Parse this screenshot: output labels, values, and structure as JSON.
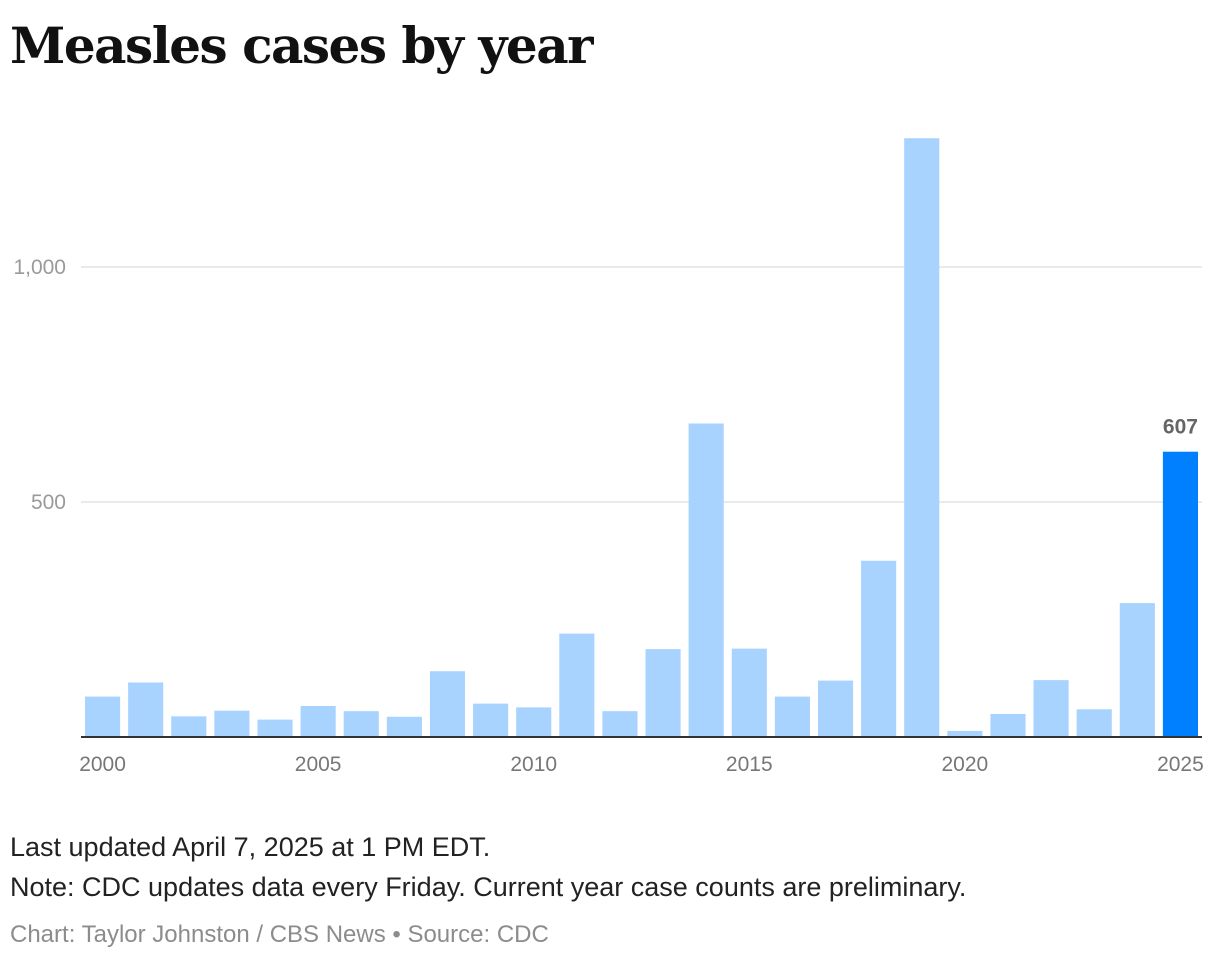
{
  "chart_data": {
    "type": "bar",
    "title": "Measles cases by year",
    "xlabel": "",
    "ylabel": "",
    "categories": [
      "2000",
      "2001",
      "2002",
      "2003",
      "2004",
      "2005",
      "2006",
      "2007",
      "2008",
      "2009",
      "2010",
      "2011",
      "2012",
      "2013",
      "2014",
      "2015",
      "2016",
      "2017",
      "2018",
      "2019",
      "2020",
      "2021",
      "2022",
      "2023",
      "2024",
      "2025"
    ],
    "values": [
      86,
      116,
      44,
      56,
      37,
      66,
      55,
      43,
      140,
      71,
      63,
      220,
      55,
      187,
      667,
      188,
      86,
      120,
      375,
      1274,
      13,
      49,
      121,
      59,
      285,
      607
    ],
    "x_tick_labels": [
      "2000",
      "2005",
      "2010",
      "2015",
      "2020",
      "2025"
    ],
    "y_tick_labels": [
      "500",
      "1,000"
    ],
    "y_ticks": [
      500,
      1000
    ],
    "ylim": [
      0,
      1300
    ],
    "grid": true,
    "highlight_index": 25,
    "highlight_label": "607",
    "colors": {
      "bar": "#a8d3ff",
      "highlight": "#0080ff",
      "grid": "#e3e3e3",
      "axis": "#333333"
    }
  },
  "notes": {
    "updated": "Last updated April 7, 2025 at 1 PM EDT.",
    "note": "Note: CDC updates data every Friday. Current year case counts are preliminary."
  },
  "credit": "Chart: Taylor Johnston / CBS News • Source: CDC"
}
